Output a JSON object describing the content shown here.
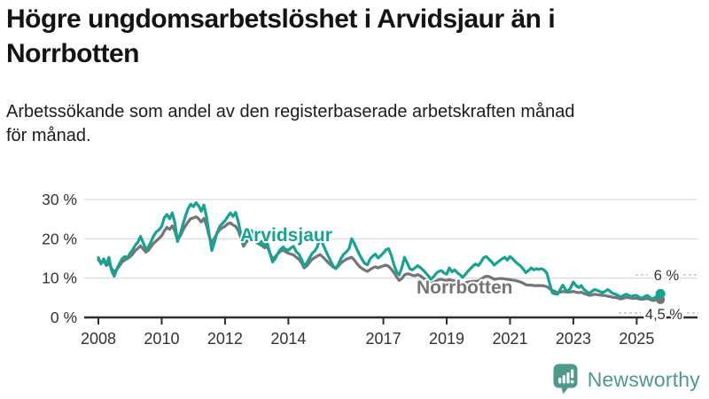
{
  "header": {
    "title": "Högre ungdomsarbetslöshet i Arvidsjaur än i Norrbotten",
    "subtitle": "Arbetssökande som andel av den registerbaserade arbetskraften månad för månad."
  },
  "branding": {
    "name": "Newsworthy",
    "icon": "newsworthy-speech-bubble-bars-icon",
    "color": "#4D9A8D"
  },
  "colors": {
    "arvidsjaur": "#17A394",
    "norrbotten": "#757575",
    "grid": "#DCDCDC",
    "axis": "#2D2D2D",
    "tick_text": "#333333",
    "leader": "#C2C2C2",
    "end_label_text": "#333333"
  },
  "chart_data": {
    "type": "line",
    "x_unit": "month",
    "x_start": "2008-01",
    "x_end": "2025-10",
    "x_tick_years": [
      2008,
      2010,
      2012,
      2014,
      2017,
      2019,
      2021,
      2023,
      2025
    ],
    "y_ticks": [
      {
        "value": 30,
        "label": "30 %"
      },
      {
        "value": 20,
        "label": "20 %"
      },
      {
        "value": 10,
        "label": "10 %"
      },
      {
        "value": 0,
        "label": "0 %"
      }
    ],
    "ylim": [
      0,
      32
    ],
    "grid": "horizontal",
    "legend": "inline-labels",
    "series": [
      {
        "name": "Arvidsjaur",
        "color": "#17A394",
        "end_label": "6 %",
        "end_value": 6.0,
        "values_monthly": [
          15.2,
          13.6,
          14.9,
          13.4,
          15.3,
          11.9,
          10.5,
          12.3,
          13.7,
          14.9,
          15.5,
          15.2,
          16.3,
          17.2,
          18.4,
          19.2,
          20.6,
          19.0,
          17.3,
          18.0,
          19.3,
          20.8,
          21.8,
          22.3,
          23.2,
          25.4,
          26.2,
          25.1,
          26.6,
          24.1,
          19.3,
          21.2,
          23.6,
          25.8,
          27.6,
          28.8,
          28.2,
          29.2,
          28.4,
          27.0,
          28.6,
          25.5,
          21.0,
          17.0,
          19.2,
          21.6,
          23.2,
          23.9,
          24.6,
          25.6,
          26.6,
          25.7,
          26.7,
          24.4,
          21.2,
          18.7,
          20.1,
          21.6,
          22.1,
          20.9,
          19.6,
          18.7,
          19.4,
          18.1,
          18.9,
          16.4,
          14.1,
          14.9,
          16.3,
          17.3,
          17.9,
          17.3,
          17.1,
          17.7,
          18.1,
          16.7,
          16.1,
          14.7,
          13.1,
          13.9,
          15.1,
          16.3,
          16.9,
          18.0,
          20.3,
          18.8,
          17.2,
          15.8,
          14.4,
          13.1,
          12.4,
          13.6,
          15.1,
          16.1,
          16.7,
          17.5,
          20.0,
          18.8,
          17.3,
          15.9,
          14.7,
          13.7,
          13.4,
          14.9,
          15.6,
          16.1,
          15.1,
          15.7,
          16.4,
          17.2,
          17.5,
          15.8,
          13.4,
          11.6,
          10.8,
          12.6,
          15.3,
          13.9,
          12.4,
          12.1,
          12.6,
          13.2,
          12.7,
          12.1,
          11.4,
          10.6,
          9.7,
          10.3,
          11.2,
          11.7,
          11.9,
          11.3,
          11.0,
          12.6,
          11.6,
          12.1,
          11.4,
          10.9,
          10.2,
          10.9,
          11.7,
          12.4,
          13.1,
          13.6,
          13.2,
          14.1,
          15.2,
          15.5,
          14.8,
          14.2,
          13.3,
          13.9,
          14.4,
          14.9,
          15.3,
          14.6,
          15.5,
          14.9,
          14.2,
          13.6,
          13.1,
          12.3,
          11.4,
          11.9,
          12.6,
          12.1,
          12.4,
          12.2,
          12.4,
          12.0,
          11.2,
          8.6,
          6.3,
          6.0,
          5.9,
          7.1,
          8.2,
          7.1,
          6.6,
          7.6,
          9.0,
          8.1,
          7.6,
          8.1,
          7.1,
          6.6,
          6.1,
          6.6,
          7.1,
          6.9,
          6.6,
          6.3,
          6.6,
          7.1,
          6.6,
          6.1,
          5.9,
          5.6,
          5.2,
          5.6,
          5.9,
          5.6,
          5.3,
          5.6,
          5.6,
          5.1,
          4.9,
          5.3,
          5.6,
          5.1,
          4.7,
          5.1,
          5.6,
          6.0
        ]
      },
      {
        "name": "Norrbotten",
        "color": "#757575",
        "end_label": "4,5 %",
        "end_value": 4.5,
        "values_monthly": [
          14.6,
          13.9,
          14.4,
          13.2,
          13.8,
          12.4,
          11.6,
          12.2,
          13.1,
          14.1,
          14.6,
          15.0,
          15.4,
          16.1,
          17.0,
          17.6,
          18.2,
          17.4,
          16.6,
          17.1,
          18.0,
          18.9,
          19.5,
          20.1,
          20.8,
          22.0,
          22.9,
          22.4,
          23.3,
          21.9,
          19.6,
          20.7,
          22.1,
          23.3,
          24.3,
          25.1,
          25.3,
          25.6,
          25.1,
          24.3,
          25.2,
          23.4,
          20.6,
          19.0,
          20.2,
          21.4,
          22.3,
          22.8,
          23.2,
          23.8,
          24.1,
          23.5,
          23.2,
          22.1,
          20.2,
          18.1,
          19.1,
          19.9,
          20.3,
          19.6,
          19.1,
          18.6,
          18.3,
          17.7,
          18.0,
          16.4,
          14.9,
          15.4,
          16.2,
          16.8,
          17.1,
          16.7,
          16.3,
          16.1,
          15.9,
          15.3,
          14.8,
          13.9,
          12.6,
          13.1,
          14.0,
          14.8,
          15.2,
          15.6,
          16.0,
          15.4,
          14.7,
          14.0,
          13.4,
          12.8,
          12.5,
          13.1,
          13.9,
          14.4,
          14.8,
          15.1,
          15.3,
          14.6,
          13.7,
          12.9,
          12.4,
          12.0,
          11.7,
          12.2,
          12.6,
          12.9,
          12.6,
          12.9,
          13.1,
          13.3,
          13.0,
          12.3,
          11.4,
          10.3,
          9.4,
          9.9,
          10.8,
          11.1,
          11.0,
          10.7,
          10.6,
          10.9,
          10.6,
          10.1,
          9.6,
          9.1,
          8.6,
          8.9,
          9.3,
          9.6,
          9.7,
          9.5,
          9.4,
          9.6,
          9.4,
          9.3,
          9.1,
          8.9,
          8.6,
          8.8,
          9.0,
          9.1,
          9.2,
          9.2,
          9.3,
          9.7,
          10.2,
          10.5,
          10.4,
          10.1,
          9.7,
          9.8,
          9.9,
          9.9,
          9.8,
          9.7,
          9.6,
          9.5,
          9.4,
          9.2,
          9.0,
          8.7,
          8.3,
          8.2,
          8.2,
          8.1,
          8.1,
          8.1,
          8.1,
          8.0,
          7.8,
          7.3,
          6.9,
          6.6,
          6.3,
          6.4,
          6.6,
          6.5,
          6.4,
          6.5,
          6.6,
          6.4,
          6.3,
          6.4,
          6.1,
          5.9,
          5.6,
          5.7,
          5.9,
          5.8,
          5.7,
          5.6,
          5.6,
          5.4,
          5.3,
          5.1,
          5.1,
          4.9,
          4.7,
          4.9,
          5.1,
          5.0,
          4.9,
          4.8,
          4.9,
          4.7,
          4.6,
          4.7,
          4.8,
          4.6,
          4.3,
          4.4,
          4.4,
          4.5
        ]
      }
    ]
  }
}
